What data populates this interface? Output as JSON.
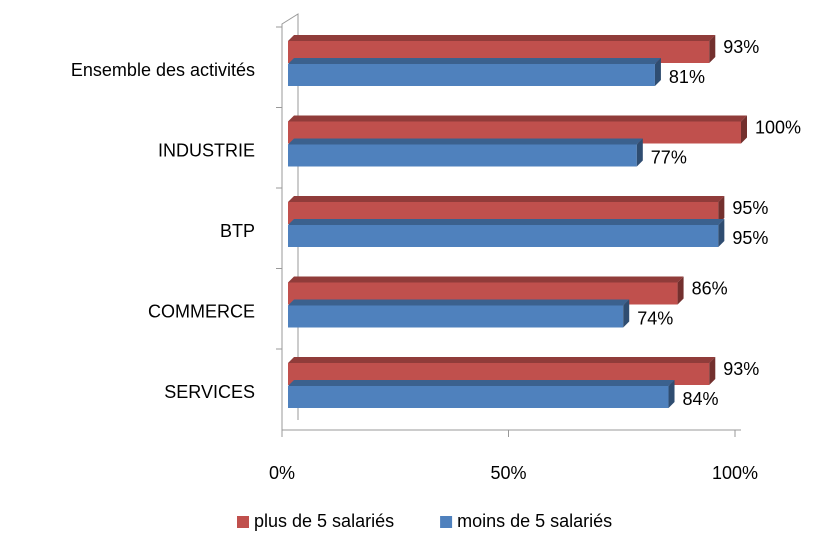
{
  "chart_data": {
    "type": "bar",
    "orientation": "horizontal",
    "categories": [
      "Ensemble des activités",
      "INDUSTRIE",
      "BTP",
      "COMMERCE",
      "SERVICES"
    ],
    "series": [
      {
        "name": "plus de 5 salariés",
        "color": "#c0504d",
        "values": [
          93,
          100,
          95,
          86,
          93
        ],
        "value_labels": [
          "93%",
          "100%",
          "95%",
          "86%",
          "93%"
        ]
      },
      {
        "name": "moins de 5 salariés",
        "color": "#4f81bd",
        "values": [
          81,
          77,
          95,
          74,
          84
        ],
        "value_labels": [
          "81%",
          "77%",
          "95%",
          "74%",
          "84%"
        ]
      }
    ],
    "xlim": [
      0,
      100
    ],
    "xticks": [
      {
        "value": 0,
        "label": "0%"
      },
      {
        "value": 50,
        "label": "50%"
      },
      {
        "value": 100,
        "label": "100%"
      }
    ],
    "legend": "bottom"
  }
}
